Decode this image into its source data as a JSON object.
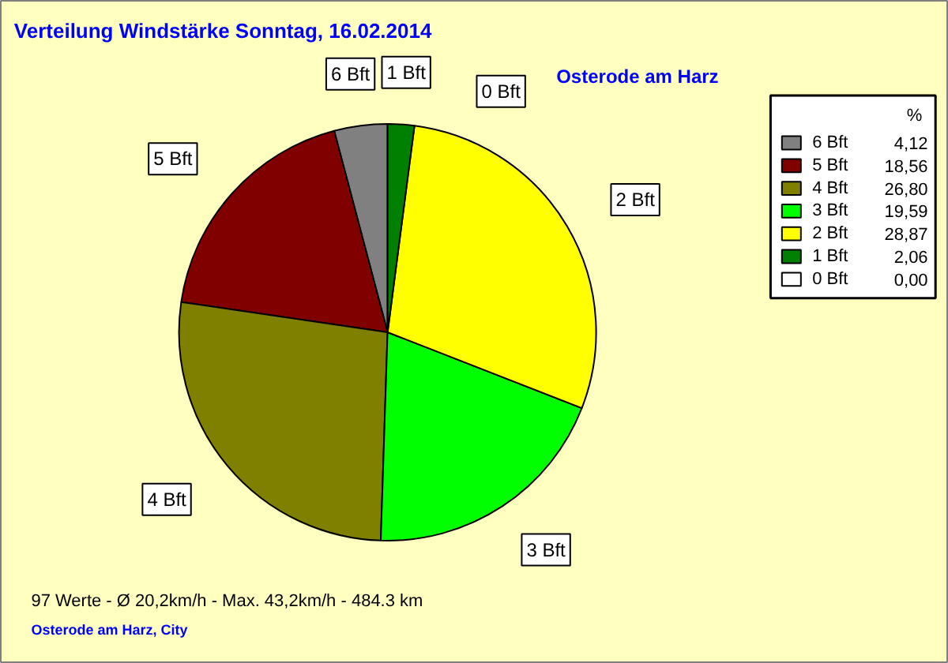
{
  "chart_data": {
    "type": "pie",
    "title": "Verteilung Windstärke  Sonntag, 16.02.2014",
    "subtitle": "Osterode am Harz",
    "categories": [
      "6 Bft",
      "5 Bft",
      "4 Bft",
      "3 Bft",
      "2 Bft",
      "1 Bft",
      "0 Bft"
    ],
    "values": [
      4.12,
      18.56,
      26.8,
      19.59,
      28.87,
      2.06,
      0.0
    ],
    "colors": [
      "#808080",
      "#800000",
      "#808000",
      "#00ff00",
      "#ffff00",
      "#008000",
      "#ffffff"
    ],
    "value_labels": [
      "4,12",
      "18,56",
      "26,80",
      "19,59",
      "28,87",
      "2,06",
      "0,00"
    ],
    "legend_title": "%",
    "legend": "top right",
    "annotations": [
      "97 Werte   -   Ø 20,2km/h  -  Max. 43,2km/h   -   484.3 km",
      "Osterode am Harz, City"
    ]
  }
}
